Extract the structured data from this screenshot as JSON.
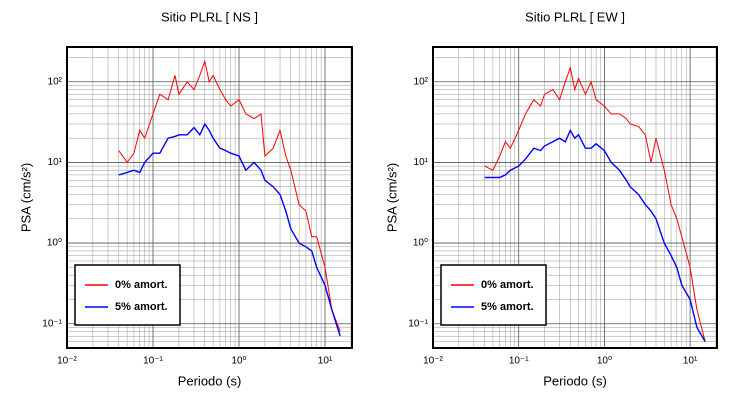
{
  "chart_data": [
    {
      "type": "line",
      "title": "Sitio PLRL [ NS ]",
      "x_label": "Periodo (s)",
      "y_label": "PSA (cm/s²)",
      "x_scale": "log",
      "y_scale": "log",
      "grid": true,
      "legend": "lower left",
      "xlim": [
        0.01,
        20.6
      ],
      "ylim": [
        0.05,
        270
      ],
      "xticks": [
        {
          "value": 0.01,
          "label": "10⁻²"
        },
        {
          "value": 0.1,
          "label": "10⁻¹"
        },
        {
          "value": 1,
          "label": "10⁰"
        },
        {
          "value": 10,
          "label": "10¹"
        }
      ],
      "yticks": [
        {
          "value": 0.1,
          "label": "10⁻¹"
        },
        {
          "value": 1,
          "label": "10⁰"
        },
        {
          "value": 10,
          "label": "10¹"
        },
        {
          "value": 100,
          "label": "10²"
        }
      ],
      "xminorticks": [
        0.02,
        0.03,
        0.04,
        0.05,
        0.06,
        0.07,
        0.08,
        0.09,
        0.2,
        0.3,
        0.4,
        0.5,
        0.6,
        0.7,
        0.8,
        0.9,
        2,
        3,
        4,
        5,
        6,
        7,
        8,
        9,
        20
      ],
      "yminorticks": [
        0.06,
        0.07,
        0.08,
        0.09,
        0.2,
        0.3,
        0.4,
        0.5,
        0.6,
        0.7,
        0.8,
        0.9,
        2,
        3,
        4,
        5,
        6,
        7,
        8,
        9,
        20,
        30,
        40,
        50,
        60,
        70,
        80,
        90,
        200
      ],
      "x": [
        0.04,
        0.05,
        0.06,
        0.07,
        0.08,
        0.1,
        0.12,
        0.15,
        0.18,
        0.2,
        0.25,
        0.3,
        0.35,
        0.4,
        0.45,
        0.5,
        0.6,
        0.7,
        0.8,
        1,
        1.2,
        1.5,
        1.8,
        2,
        2.5,
        3,
        3.5,
        4,
        5,
        6,
        7,
        8,
        10,
        12,
        15
      ],
      "series": [
        {
          "name": "0% amort.",
          "color": "#ff0000",
          "values": [
            14,
            10,
            13,
            25,
            20,
            40,
            70,
            60,
            120,
            70,
            100,
            80,
            120,
            180,
            100,
            120,
            80,
            60,
            50,
            60,
            40,
            35,
            40,
            12,
            15,
            25,
            12,
            8,
            3,
            2.5,
            1.2,
            1.2,
            0.5,
            0.15,
            0.08
          ]
        },
        {
          "name": "5% amort.",
          "color": "#0000ff",
          "values": [
            7,
            7.5,
            8,
            7.5,
            10,
            13,
            13,
            20,
            21,
            22,
            22,
            27,
            22,
            30,
            25,
            20,
            15,
            14,
            13,
            12,
            8,
            10,
            8,
            6,
            5,
            4,
            2.5,
            1.5,
            1,
            0.9,
            0.8,
            0.5,
            0.3,
            0.15,
            0.07
          ]
        }
      ]
    },
    {
      "type": "line",
      "title": "Sitio PLRL [ EW ]",
      "x_label": "Periodo (s)",
      "y_label": "PSA (cm/s²)",
      "x_scale": "log",
      "y_scale": "log",
      "grid": true,
      "legend": "lower left",
      "xlim": [
        0.01,
        20.6
      ],
      "ylim": [
        0.05,
        270
      ],
      "xticks": [
        {
          "value": 0.01,
          "label": "10⁻²"
        },
        {
          "value": 0.1,
          "label": "10⁻¹"
        },
        {
          "value": 1,
          "label": "10⁰"
        },
        {
          "value": 10,
          "label": "10¹"
        }
      ],
      "yticks": [
        {
          "value": 0.1,
          "label": "10⁻¹"
        },
        {
          "value": 1,
          "label": "10⁰"
        },
        {
          "value": 10,
          "label": "10¹"
        },
        {
          "value": 100,
          "label": "10²"
        }
      ],
      "xminorticks": [
        0.02,
        0.03,
        0.04,
        0.05,
        0.06,
        0.07,
        0.08,
        0.09,
        0.2,
        0.3,
        0.4,
        0.5,
        0.6,
        0.7,
        0.8,
        0.9,
        2,
        3,
        4,
        5,
        6,
        7,
        8,
        9,
        20
      ],
      "yminorticks": [
        0.06,
        0.07,
        0.08,
        0.09,
        0.2,
        0.3,
        0.4,
        0.5,
        0.6,
        0.7,
        0.8,
        0.9,
        2,
        3,
        4,
        5,
        6,
        7,
        8,
        9,
        20,
        30,
        40,
        50,
        60,
        70,
        80,
        90,
        200
      ],
      "x": [
        0.04,
        0.05,
        0.06,
        0.07,
        0.08,
        0.1,
        0.12,
        0.15,
        0.18,
        0.2,
        0.25,
        0.3,
        0.35,
        0.4,
        0.45,
        0.5,
        0.6,
        0.7,
        0.8,
        1,
        1.2,
        1.5,
        1.8,
        2,
        2.5,
        3,
        3.5,
        4,
        5,
        6,
        7,
        8,
        10,
        12,
        15
      ],
      "series": [
        {
          "name": "0% amort.",
          "color": "#ff0000",
          "values": [
            9,
            8,
            12,
            18,
            15,
            25,
            40,
            60,
            50,
            70,
            80,
            60,
            100,
            150,
            80,
            110,
            70,
            100,
            60,
            50,
            40,
            40,
            35,
            30,
            28,
            22,
            10,
            20,
            8,
            3,
            2,
            1.2,
            0.5,
            0.15,
            0.06
          ]
        },
        {
          "name": "5% amort.",
          "color": "#0000ff",
          "values": [
            6.5,
            6.5,
            6.5,
            7,
            8,
            9,
            11,
            15,
            14,
            16,
            18,
            20,
            18,
            25,
            20,
            22,
            15,
            15,
            17,
            14,
            10,
            8,
            6,
            5,
            4,
            3,
            2.5,
            2,
            1,
            0.7,
            0.5,
            0.3,
            0.2,
            0.09,
            0.06
          ]
        }
      ]
    }
  ]
}
